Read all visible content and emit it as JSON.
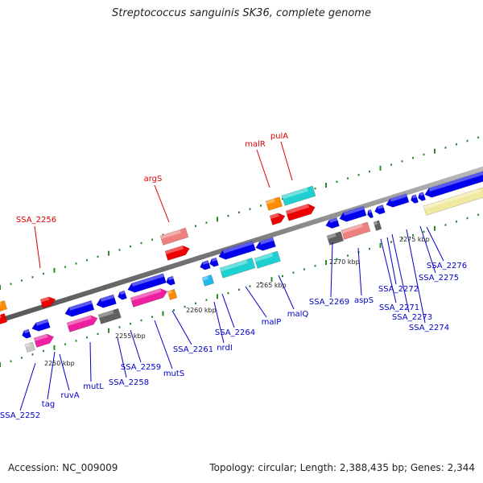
{
  "header": {
    "title": "Streptococcus sanguinis SK36, complete genome"
  },
  "footer": {
    "accession": "Accession: NC_009009",
    "summary": "Topology: circular; Length: 2,388,435 bp; Genes: 2,344"
  },
  "colors": {
    "backbone": "#8a8a8a",
    "tick": "#2a8a2a",
    "label_top": "#dd0000",
    "label_bottom": "#0000cc",
    "blue": "#0000ee",
    "magenta": "#ee1fa0",
    "cyan": "#1fd0d0",
    "red": "#ee0000",
    "salmon": "#ee8080",
    "orange": "#ff8c00",
    "grey": "#606060",
    "lightblue": "#22b8ee",
    "yellow": "#f0eaa0",
    "lightgrey": "#c8c8c8"
  },
  "scale": [
    {
      "text": "2250 kbp"
    },
    {
      "text": "2255 kbp"
    },
    {
      "text": "2260 kbp"
    },
    {
      "text": "2265 kbp"
    },
    {
      "text": "2270 kbp"
    },
    {
      "text": "2275 kbp"
    }
  ],
  "labels_top": [
    {
      "text": "SSA_2256"
    },
    {
      "text": "argS"
    },
    {
      "text": "malR"
    },
    {
      "text": "pulA"
    }
  ],
  "labels_bottom": [
    {
      "text": "SSA_2252"
    },
    {
      "text": "tag"
    },
    {
      "text": "ruvA"
    },
    {
      "text": "mutL"
    },
    {
      "text": "SSA_2258"
    },
    {
      "text": "SSA_2259"
    },
    {
      "text": "mutS"
    },
    {
      "text": "SSA_2261"
    },
    {
      "text": "nrdI"
    },
    {
      "text": "SSA_2264"
    },
    {
      "text": "malP"
    },
    {
      "text": "malQ"
    },
    {
      "text": "SSA_2269"
    },
    {
      "text": "aspS"
    },
    {
      "text": "SSA_2271"
    },
    {
      "text": "SSA_2272"
    },
    {
      "text": "SSA_2273"
    },
    {
      "text": "SSA_2274"
    },
    {
      "text": "SSA_2275"
    },
    {
      "text": "SSA_2276"
    }
  ]
}
